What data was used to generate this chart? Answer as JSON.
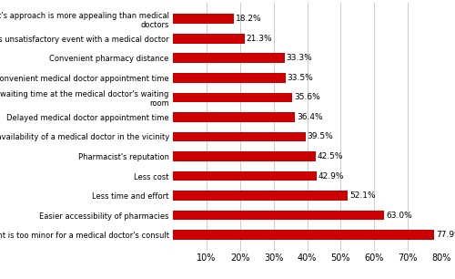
{
  "categories": [
    "The ailment is too minor for a medical doctor's consult",
    "Easier accessibility of pharmacies",
    "Less time and effort",
    "Less cost",
    "Pharmacist's reputation",
    "Unavailability of a medical doctor in the vicinity",
    "Delayed medical doctor appointment time",
    "Prolonged waiting time at the medical doctor's waiting\nroom",
    "Inconvenient medical doctor appointment time",
    "Convenient pharmacy distance",
    "A previous unsatisfactory event with a medical doctor",
    "The pharmacist's approach is more appealing than medical\ndoctors"
  ],
  "values": [
    77.9,
    63.0,
    52.1,
    42.9,
    42.5,
    39.5,
    36.4,
    35.6,
    33.5,
    33.3,
    21.3,
    18.2
  ],
  "bar_color": "#cc0000",
  "bar_height": 0.5,
  "xlim": [
    0,
    80
  ],
  "xticks": [
    10,
    20,
    30,
    40,
    50,
    60,
    70,
    80
  ],
  "xtick_labels": [
    "10%",
    "20%",
    "30%",
    "40%",
    "50%",
    "60%",
    "70%",
    "80%"
  ],
  "value_label_fontsize": 6.5,
  "ytick_fontsize": 6.0,
  "xtick_fontsize": 7.0,
  "grid_color": "#cccccc",
  "background_color": "#ffffff"
}
